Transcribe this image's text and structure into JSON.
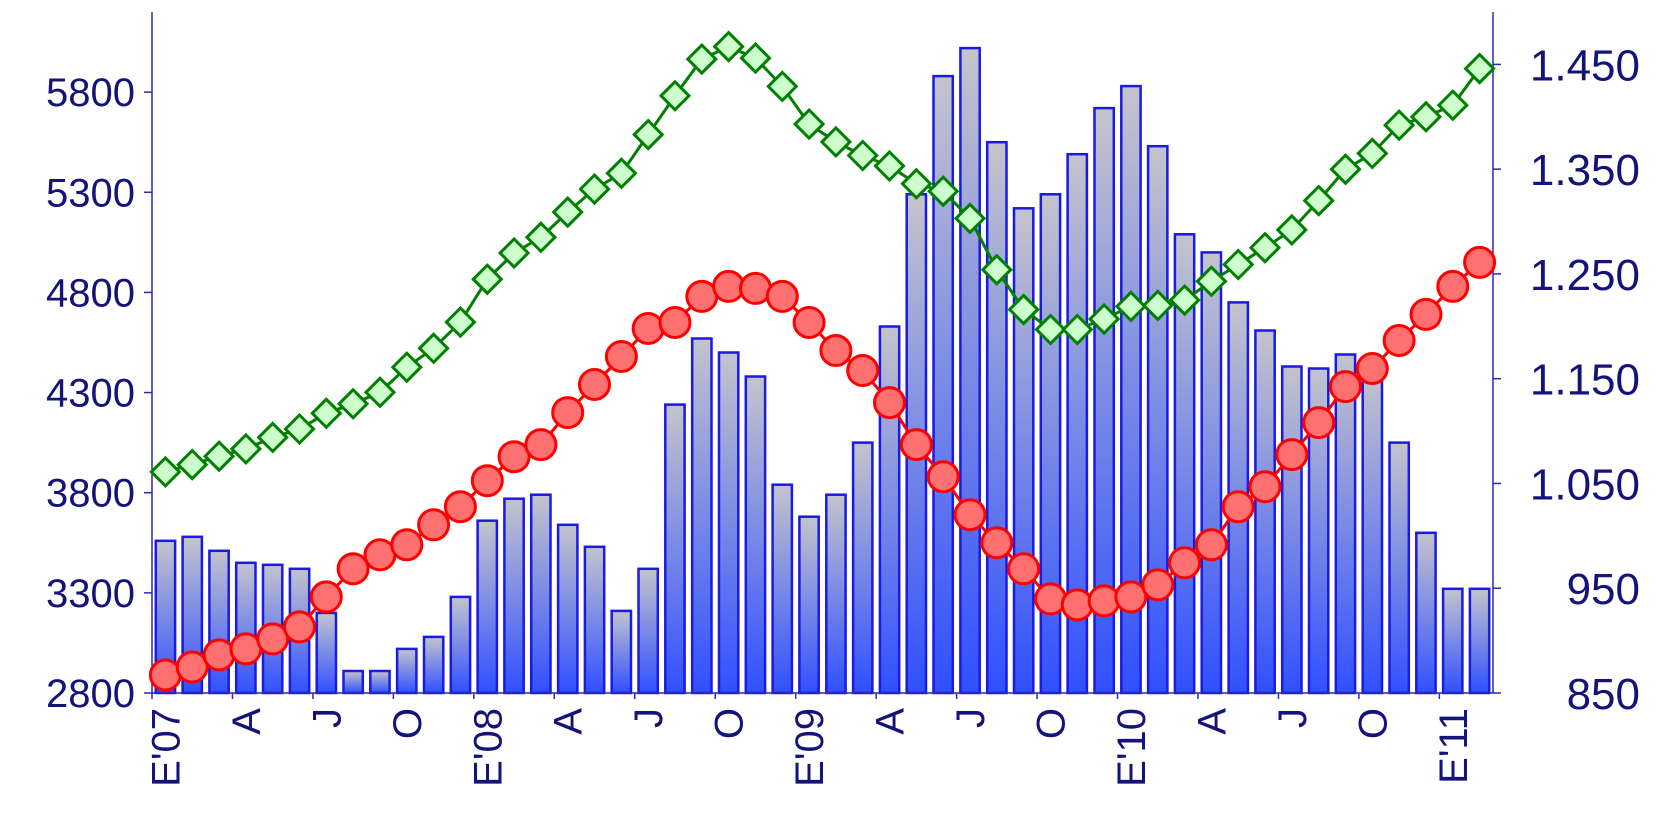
{
  "chart_data": {
    "type": "bar",
    "x_tick_labels": [
      "E'07",
      "A",
      "J",
      "O",
      "E'08",
      "A",
      "J",
      "O",
      "E'09",
      "A",
      "J",
      "O",
      "E'10",
      "A",
      "J",
      "O",
      "E'11"
    ],
    "x_tick_index": [
      0,
      3,
      6,
      9,
      12,
      15,
      18,
      21,
      24,
      27,
      30,
      33,
      36,
      39,
      42,
      45,
      48
    ],
    "y_left": {
      "ylim": [
        2800,
        6200
      ],
      "ticks": [
        2800,
        3300,
        3800,
        4300,
        4800,
        5300,
        5800
      ]
    },
    "y_right": {
      "ylim": [
        850,
        1500
      ],
      "ticks": [
        "850",
        "950",
        "1.050",
        "1.150",
        "1.250",
        "1.350",
        "1.450"
      ],
      "tick_values": [
        850,
        950,
        1050,
        1150,
        1250,
        1350,
        1450
      ]
    },
    "grid": false,
    "series": [
      {
        "type": "bar",
        "axis": "left",
        "color_top": "#c0c0c8",
        "color_bottom": "#3355ff",
        "stroke": "#1a1ae0",
        "values": [
          3560,
          3580,
          3510,
          3450,
          3440,
          3420,
          3200,
          2910,
          2910,
          3020,
          3080,
          3280,
          3660,
          3770,
          3790,
          3640,
          3530,
          3210,
          3420,
          4240,
          4570,
          4500,
          4380,
          3840,
          3680,
          3790,
          4050,
          4630,
          5290,
          5880,
          6020,
          5550,
          5220,
          5290,
          5490,
          5720,
          5830,
          5530,
          5090,
          5000,
          4750,
          4610,
          4430,
          4420,
          4490,
          4400,
          4050,
          3600,
          3320,
          3320
        ]
      },
      {
        "type": "line",
        "axis": "left",
        "marker": "circle",
        "color": "#ff0000",
        "fill": "#ff7070",
        "values": [
          2890,
          2930,
          2990,
          3020,
          3070,
          3130,
          3280,
          3420,
          3490,
          3540,
          3640,
          3730,
          3860,
          3980,
          4040,
          4200,
          4340,
          4480,
          4620,
          4650,
          4780,
          4830,
          4820,
          4780,
          4650,
          4510,
          4410,
          4250,
          4040,
          3880,
          3690,
          3550,
          3420,
          3270,
          3240,
          3260,
          3280,
          3340,
          3450,
          3540,
          3730,
          3830,
          3990,
          4150,
          4330,
          4420,
          4560,
          4690,
          4830,
          4950
        ]
      },
      {
        "type": "line",
        "axis": "right",
        "marker": "diamond",
        "color": "#008000",
        "fill": "#ccffcc",
        "values": [
          1061,
          1068,
          1076,
          1083,
          1094,
          1102,
          1117,
          1126,
          1137,
          1161,
          1179,
          1204,
          1245,
          1270,
          1285,
          1309,
          1331,
          1346,
          1383,
          1420,
          1455,
          1467,
          1456,
          1429,
          1393,
          1376,
          1363,
          1353,
          1336,
          1329,
          1303,
          1254,
          1216,
          1197,
          1197,
          1207,
          1219,
          1220,
          1225,
          1243,
          1259,
          1275,
          1292,
          1320,
          1350,
          1365,
          1392,
          1400,
          1411,
          1446
        ]
      }
    ]
  }
}
